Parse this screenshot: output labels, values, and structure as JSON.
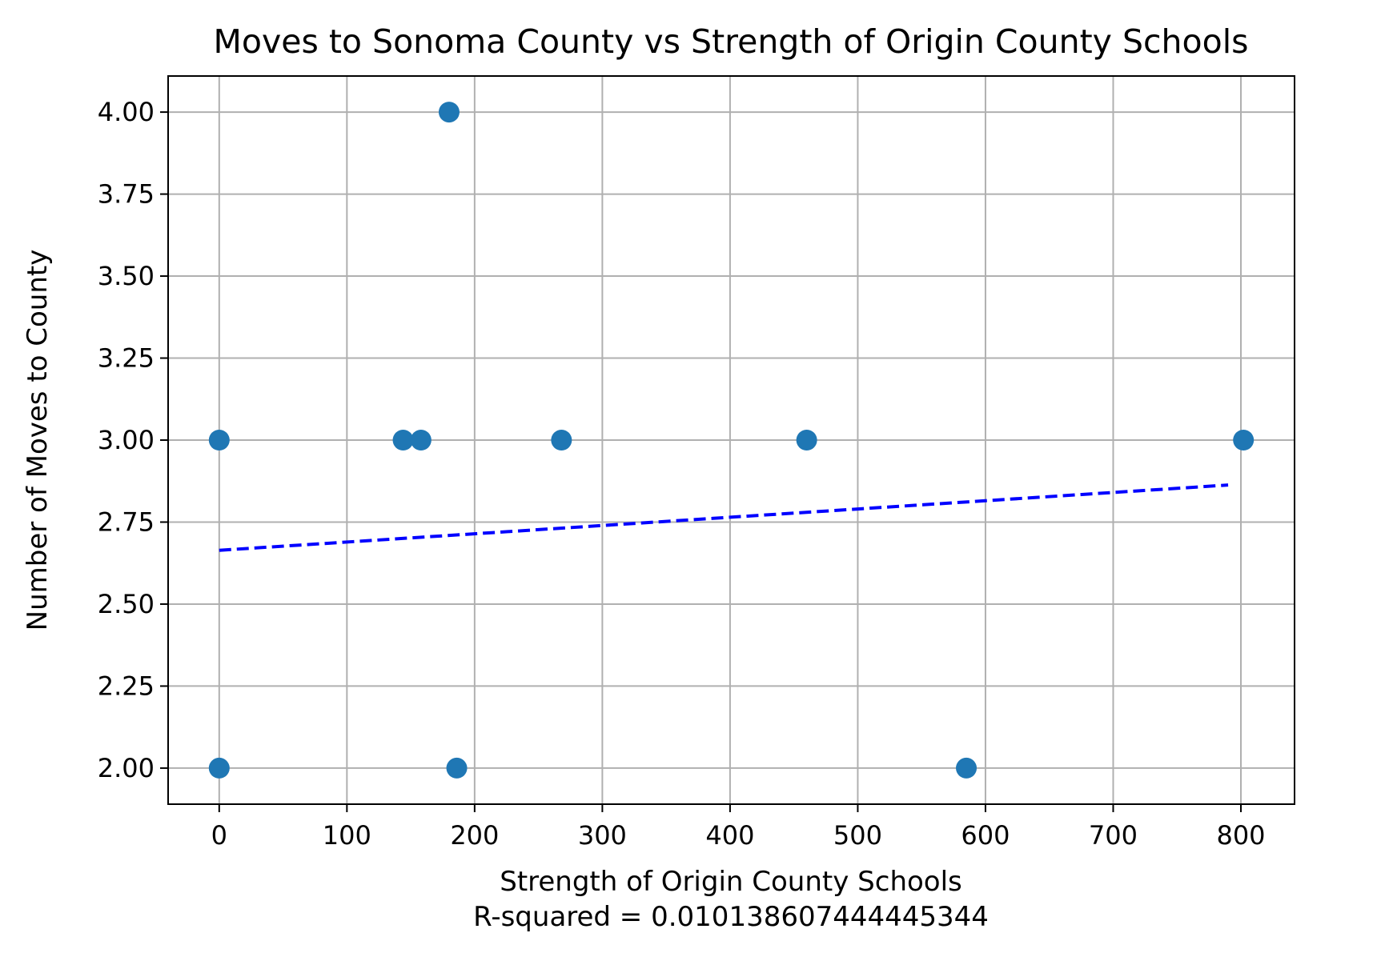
{
  "chart_data": {
    "type": "scatter",
    "title": "Moves to Sonoma County vs Strength of Origin County Schools",
    "xlabel": "Strength of Origin County Schools",
    "xlabel_line2": "R-squared = 0.010138607444445344",
    "ylabel": "Number of Moves to County",
    "xlim": [
      -40,
      842
    ],
    "ylim": [
      1.89,
      4.11
    ],
    "xticks": [
      0,
      100,
      200,
      300,
      400,
      500,
      600,
      700,
      800
    ],
    "yticks": [
      2.0,
      2.25,
      2.5,
      2.75,
      3.0,
      3.25,
      3.5,
      3.75,
      4.0
    ],
    "ytick_labels": [
      "2.00",
      "2.25",
      "2.50",
      "2.75",
      "3.00",
      "3.25",
      "3.50",
      "3.75",
      "4.00"
    ],
    "grid": true,
    "points": [
      {
        "x": 0,
        "y": 3
      },
      {
        "x": 0,
        "y": 2
      },
      {
        "x": 144,
        "y": 3
      },
      {
        "x": 158,
        "y": 3
      },
      {
        "x": 180,
        "y": 4
      },
      {
        "x": 186,
        "y": 2
      },
      {
        "x": 268,
        "y": 3
      },
      {
        "x": 460,
        "y": 3
      },
      {
        "x": 585,
        "y": 2
      },
      {
        "x": 802,
        "y": 3
      }
    ],
    "trendline": {
      "x": [
        0,
        790
      ],
      "y": [
        2.664,
        2.863
      ],
      "style": "dashed"
    },
    "colors": {
      "points": "#1f77b4",
      "trendline": "#0000ff",
      "grid": "#b0b0b0"
    }
  }
}
